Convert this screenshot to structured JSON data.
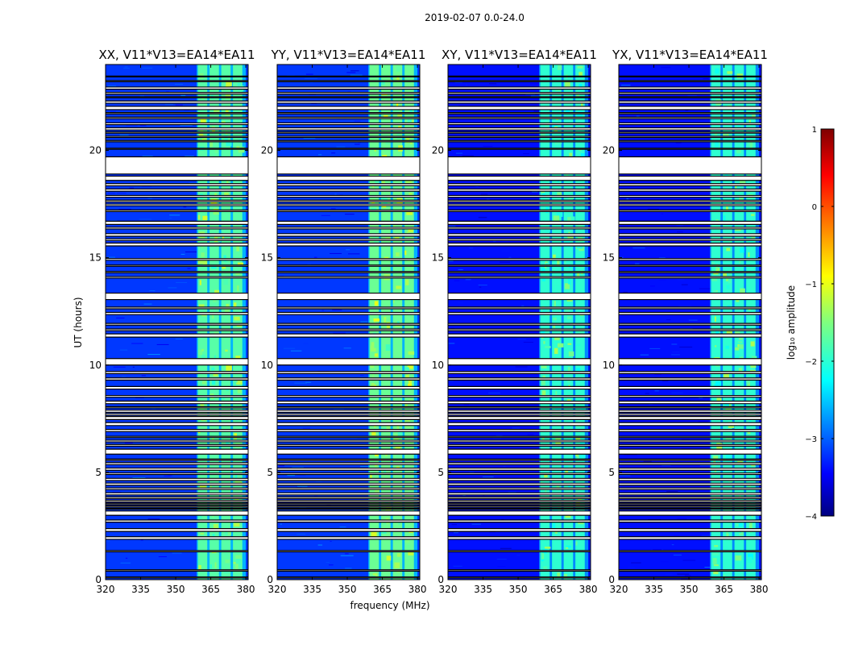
{
  "figure_title": "2019-02-07 0.0-24.0",
  "chart_data": {
    "type": "heatmap",
    "title": "2019-02-07 0.0-24.0",
    "xlabel": "frequency (MHz)",
    "ylabel": "UT (hours)",
    "xlim": [
      320,
      381
    ],
    "ylim": [
      0,
      24
    ],
    "xticks": [
      320,
      335,
      350,
      365,
      380
    ],
    "yticks": [
      0,
      5,
      10,
      15,
      20
    ],
    "colorbar": {
      "label": "log₁₀ amplitude",
      "range": [
        -4,
        1
      ],
      "ticks": [
        -4,
        -3,
        -2,
        -1,
        0,
        1
      ],
      "tick_labels": [
        "−4",
        "−3",
        "−2",
        "−1",
        "0",
        "1"
      ],
      "colormap": [
        "#00007f",
        "#0000ff",
        "#007fff",
        "#00ffff",
        "#7fff7f",
        "#ffff00",
        "#ff7f00",
        "#ff0000",
        "#7f0000"
      ]
    },
    "band_segments_mhz": [
      [
        359.5,
        363.5
      ],
      [
        364.5,
        368.5
      ],
      [
        369.5,
        373.5
      ],
      [
        374.5,
        378.5
      ]
    ],
    "panels": [
      {
        "title": "XX, V11*V13=EA14*EA11",
        "product": "XX",
        "background_log_amp": -3.1,
        "band_log_amp": -1.7,
        "band_range_mhz": [
          359,
          380
        ]
      },
      {
        "title": "YY, V11*V13=EA14*EA11",
        "product": "YY",
        "background_log_amp": -3.1,
        "band_log_amp": -1.6,
        "band_range_mhz": [
          359,
          380
        ]
      },
      {
        "title": "XY, V11*V13=EA14*EA11",
        "product": "XY",
        "background_log_amp": -3.3,
        "band_log_amp": -1.9,
        "band_range_mhz": [
          359,
          380
        ]
      },
      {
        "title": "YX, V11*V13=EA14*EA11",
        "product": "YX",
        "background_log_amp": -3.3,
        "band_log_amp": -1.9,
        "band_range_mhz": [
          359,
          380
        ]
      }
    ],
    "flagged_intervals_ut": [
      [
        0.08,
        0.13
      ],
      [
        0.4,
        0.46
      ],
      [
        1.3,
        1.36
      ],
      [
        1.88,
        2.0
      ],
      [
        2.25,
        2.38
      ],
      [
        2.68,
        2.78
      ],
      [
        3.0,
        3.2
      ],
      [
        3.28,
        3.32
      ],
      [
        3.38,
        3.44
      ],
      [
        3.5,
        3.56
      ],
      [
        3.62,
        3.7
      ],
      [
        3.78,
        3.86
      ],
      [
        3.95,
        4.05
      ],
      [
        4.2,
        4.28
      ],
      [
        4.4,
        4.5
      ],
      [
        4.62,
        4.72
      ],
      [
        4.9,
        4.97
      ],
      [
        5.1,
        5.2
      ],
      [
        5.36,
        5.45
      ],
      [
        5.56,
        5.62
      ],
      [
        5.85,
        6.08
      ],
      [
        6.22,
        6.3
      ],
      [
        6.42,
        6.5
      ],
      [
        6.62,
        6.68
      ],
      [
        6.9,
        7.0
      ],
      [
        7.18,
        7.32
      ],
      [
        7.46,
        7.6
      ],
      [
        7.66,
        7.74
      ],
      [
        7.8,
        7.9
      ],
      [
        8.0,
        8.06
      ],
      [
        8.2,
        8.32
      ],
      [
        8.5,
        8.58
      ],
      [
        8.88,
        9.0
      ],
      [
        9.3,
        9.4
      ],
      [
        9.6,
        9.7
      ],
      [
        10.0,
        10.3
      ],
      [
        11.3,
        11.45
      ],
      [
        11.6,
        11.68
      ],
      [
        11.86,
        11.94
      ],
      [
        12.35,
        12.45
      ],
      [
        12.62,
        12.7
      ],
      [
        13.05,
        13.35
      ],
      [
        14.05,
        14.12
      ],
      [
        14.3,
        14.36
      ],
      [
        14.6,
        14.66
      ],
      [
        14.88,
        14.96
      ],
      [
        15.55,
        15.68
      ],
      [
        15.8,
        15.88
      ],
      [
        16.0,
        16.12
      ],
      [
        16.34,
        16.42
      ],
      [
        16.55,
        16.7
      ],
      [
        17.15,
        17.22
      ],
      [
        17.42,
        17.5
      ],
      [
        17.6,
        17.68
      ],
      [
        17.82,
        17.9
      ],
      [
        18.1,
        18.2
      ],
      [
        18.35,
        18.45
      ],
      [
        18.6,
        18.8
      ],
      [
        18.9,
        19.7
      ],
      [
        20.05,
        20.1
      ],
      [
        20.4,
        20.46
      ],
      [
        20.6,
        20.66
      ],
      [
        20.8,
        20.86
      ],
      [
        20.95,
        21.05
      ],
      [
        21.2,
        21.28
      ],
      [
        21.48,
        21.55
      ],
      [
        21.7,
        21.76
      ],
      [
        21.9,
        22.05
      ],
      [
        22.2,
        22.3
      ],
      [
        22.45,
        22.5
      ],
      [
        22.62,
        22.7
      ],
      [
        22.85,
        22.95
      ],
      [
        23.2,
        23.25
      ],
      [
        23.42,
        23.46
      ]
    ]
  }
}
